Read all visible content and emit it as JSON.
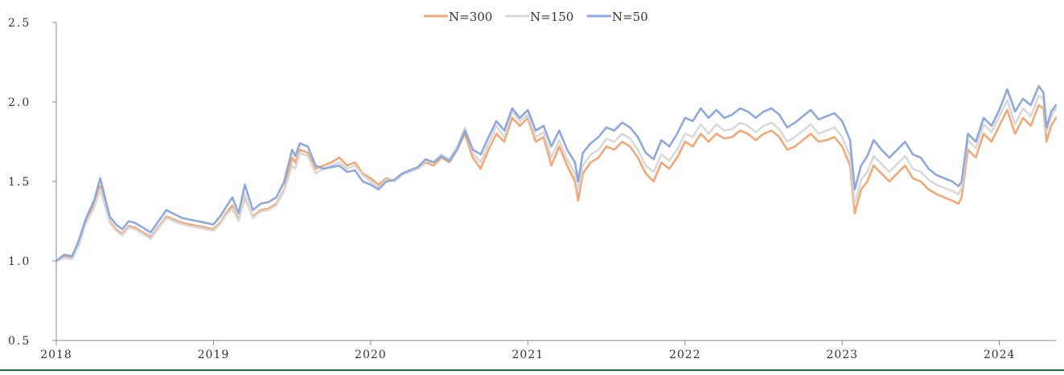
{
  "chart_data": {
    "type": "line",
    "title": "",
    "xlabel": "",
    "ylabel": "",
    "ylim": [
      0.5,
      2.5
    ],
    "xlim": [
      2018.0,
      2024.36
    ],
    "y_ticks": [
      "0.5",
      "1.0",
      "1.5",
      "2.0",
      "2.5"
    ],
    "y_tick_values": [
      0.5,
      1.0,
      1.5,
      2.0,
      2.5
    ],
    "x_ticks": [
      "2018",
      "2019",
      "2020",
      "2021",
      "2022",
      "2023",
      "2024"
    ],
    "x_tick_values": [
      2018,
      2019,
      2020,
      2021,
      2022,
      2023,
      2024
    ],
    "grid": false,
    "legend_position": "top-center",
    "series": [
      {
        "name": "N=300",
        "color": "#f0a878",
        "x": [
          2018.0,
          2018.05,
          2018.1,
          2018.14,
          2018.19,
          2018.24,
          2018.28,
          2018.3,
          2018.34,
          2018.38,
          2018.42,
          2018.46,
          2018.5,
          2018.55,
          2018.6,
          2018.7,
          2018.8,
          2018.9,
          2019.0,
          2019.05,
          2019.08,
          2019.12,
          2019.16,
          2019.2,
          2019.25,
          2019.3,
          2019.35,
          2019.4,
          2019.45,
          2019.5,
          2019.52,
          2019.55,
          2019.6,
          2019.65,
          2019.7,
          2019.75,
          2019.8,
          2019.85,
          2019.9,
          2019.95,
          2020.0,
          2020.05,
          2020.1,
          2020.15,
          2020.2,
          2020.25,
          2020.3,
          2020.35,
          2020.4,
          2020.45,
          2020.5,
          2020.55,
          2020.6,
          2020.65,
          2020.7,
          2020.75,
          2020.8,
          2020.85,
          2020.9,
          2020.95,
          2021.0,
          2021.05,
          2021.1,
          2021.15,
          2021.2,
          2021.25,
          2021.3,
          2021.32,
          2021.35,
          2021.4,
          2021.45,
          2021.5,
          2021.55,
          2021.6,
          2021.65,
          2021.7,
          2021.75,
          2021.8,
          2021.85,
          2021.9,
          2021.95,
          2022.0,
          2022.05,
          2022.1,
          2022.15,
          2022.2,
          2022.25,
          2022.3,
          2022.35,
          2022.4,
          2022.45,
          2022.5,
          2022.55,
          2022.6,
          2022.65,
          2022.7,
          2022.75,
          2022.8,
          2022.85,
          2022.9,
          2022.95,
          2023.0,
          2023.05,
          2023.08,
          2023.12,
          2023.16,
          2023.2,
          2023.25,
          2023.3,
          2023.35,
          2023.4,
          2023.45,
          2023.5,
          2023.55,
          2023.6,
          2023.65,
          2023.7,
          2023.74,
          2023.76,
          2023.8,
          2023.85,
          2023.9,
          2023.95,
          2024.0,
          2024.05,
          2024.1,
          2024.15,
          2024.2,
          2024.25,
          2024.28,
          2024.3,
          2024.33,
          2024.36
        ],
        "values": [
          1.0,
          1.03,
          1.02,
          1.1,
          1.25,
          1.35,
          1.47,
          1.4,
          1.25,
          1.2,
          1.17,
          1.22,
          1.21,
          1.18,
          1.15,
          1.28,
          1.24,
          1.22,
          1.2,
          1.25,
          1.3,
          1.35,
          1.26,
          1.4,
          1.28,
          1.32,
          1.33,
          1.36,
          1.45,
          1.65,
          1.62,
          1.7,
          1.68,
          1.58,
          1.6,
          1.62,
          1.65,
          1.6,
          1.62,
          1.55,
          1.52,
          1.48,
          1.52,
          1.5,
          1.55,
          1.57,
          1.58,
          1.62,
          1.6,
          1.65,
          1.62,
          1.7,
          1.8,
          1.65,
          1.58,
          1.7,
          1.8,
          1.75,
          1.9,
          1.85,
          1.9,
          1.75,
          1.78,
          1.6,
          1.72,
          1.6,
          1.5,
          1.38,
          1.55,
          1.62,
          1.65,
          1.72,
          1.7,
          1.75,
          1.72,
          1.65,
          1.55,
          1.5,
          1.62,
          1.58,
          1.65,
          1.75,
          1.72,
          1.8,
          1.75,
          1.8,
          1.77,
          1.78,
          1.82,
          1.8,
          1.76,
          1.8,
          1.82,
          1.78,
          1.7,
          1.72,
          1.76,
          1.8,
          1.75,
          1.76,
          1.78,
          1.72,
          1.6,
          1.3,
          1.45,
          1.5,
          1.6,
          1.55,
          1.5,
          1.55,
          1.6,
          1.52,
          1.5,
          1.45,
          1.42,
          1.4,
          1.38,
          1.36,
          1.4,
          1.7,
          1.65,
          1.8,
          1.75,
          1.85,
          1.95,
          1.8,
          1.9,
          1.85,
          1.98,
          1.96,
          1.75,
          1.85,
          1.9
        ]
      },
      {
        "name": "N=150",
        "color": "#d9d9d9",
        "x": [
          2018.0,
          2018.05,
          2018.1,
          2018.14,
          2018.19,
          2018.24,
          2018.28,
          2018.3,
          2018.34,
          2018.38,
          2018.42,
          2018.46,
          2018.5,
          2018.55,
          2018.6,
          2018.7,
          2018.8,
          2018.9,
          2019.0,
          2019.05,
          2019.08,
          2019.12,
          2019.16,
          2019.2,
          2019.25,
          2019.3,
          2019.35,
          2019.4,
          2019.45,
          2019.5,
          2019.52,
          2019.55,
          2019.6,
          2019.65,
          2019.7,
          2019.75,
          2019.8,
          2019.85,
          2019.9,
          2019.95,
          2020.0,
          2020.05,
          2020.1,
          2020.15,
          2020.2,
          2020.25,
          2020.3,
          2020.35,
          2020.4,
          2020.45,
          2020.5,
          2020.55,
          2020.6,
          2020.65,
          2020.7,
          2020.75,
          2020.8,
          2020.85,
          2020.9,
          2020.95,
          2021.0,
          2021.05,
          2021.1,
          2021.15,
          2021.2,
          2021.25,
          2021.3,
          2021.32,
          2021.35,
          2021.4,
          2021.45,
          2021.5,
          2021.55,
          2021.6,
          2021.65,
          2021.7,
          2021.75,
          2021.8,
          2021.85,
          2021.9,
          2021.95,
          2022.0,
          2022.05,
          2022.1,
          2022.15,
          2022.2,
          2022.25,
          2022.3,
          2022.35,
          2022.4,
          2022.45,
          2022.5,
          2022.55,
          2022.6,
          2022.65,
          2022.7,
          2022.75,
          2022.8,
          2022.85,
          2022.9,
          2022.95,
          2023.0,
          2023.05,
          2023.08,
          2023.12,
          2023.16,
          2023.2,
          2023.25,
          2023.3,
          2023.35,
          2023.4,
          2023.45,
          2023.5,
          2023.55,
          2023.6,
          2023.65,
          2023.7,
          2023.74,
          2023.76,
          2023.8,
          2023.85,
          2023.9,
          2023.95,
          2024.0,
          2024.05,
          2024.1,
          2024.15,
          2024.2,
          2024.25,
          2024.28,
          2024.3,
          2024.33,
          2024.36
        ],
        "values": [
          1.0,
          1.02,
          1.01,
          1.09,
          1.24,
          1.33,
          1.45,
          1.38,
          1.24,
          1.19,
          1.16,
          1.21,
          1.2,
          1.17,
          1.14,
          1.27,
          1.23,
          1.21,
          1.19,
          1.24,
          1.29,
          1.33,
          1.25,
          1.42,
          1.27,
          1.31,
          1.32,
          1.35,
          1.44,
          1.6,
          1.58,
          1.68,
          1.66,
          1.55,
          1.58,
          1.6,
          1.62,
          1.58,
          1.6,
          1.54,
          1.5,
          1.46,
          1.51,
          1.5,
          1.54,
          1.56,
          1.58,
          1.63,
          1.62,
          1.67,
          1.64,
          1.72,
          1.84,
          1.68,
          1.62,
          1.74,
          1.85,
          1.78,
          1.94,
          1.88,
          1.92,
          1.78,
          1.81,
          1.65,
          1.76,
          1.64,
          1.55,
          1.44,
          1.6,
          1.67,
          1.7,
          1.77,
          1.75,
          1.8,
          1.77,
          1.7,
          1.6,
          1.56,
          1.67,
          1.63,
          1.7,
          1.8,
          1.78,
          1.86,
          1.8,
          1.86,
          1.82,
          1.83,
          1.87,
          1.85,
          1.81,
          1.85,
          1.87,
          1.83,
          1.75,
          1.78,
          1.82,
          1.86,
          1.8,
          1.82,
          1.84,
          1.78,
          1.66,
          1.36,
          1.51,
          1.56,
          1.66,
          1.61,
          1.56,
          1.61,
          1.66,
          1.58,
          1.56,
          1.51,
          1.48,
          1.46,
          1.44,
          1.42,
          1.46,
          1.76,
          1.71,
          1.86,
          1.81,
          1.91,
          2.01,
          1.86,
          1.96,
          1.91,
          2.04,
          2.02,
          1.81,
          1.91,
          1.96
        ]
      },
      {
        "name": "N=50",
        "color": "#8fa8dc",
        "x": [
          2018.0,
          2018.05,
          2018.1,
          2018.14,
          2018.19,
          2018.24,
          2018.28,
          2018.3,
          2018.34,
          2018.38,
          2018.42,
          2018.46,
          2018.5,
          2018.55,
          2018.6,
          2018.7,
          2018.8,
          2018.9,
          2019.0,
          2019.05,
          2019.08,
          2019.12,
          2019.16,
          2019.2,
          2019.25,
          2019.3,
          2019.35,
          2019.4,
          2019.45,
          2019.5,
          2019.52,
          2019.55,
          2019.6,
          2019.65,
          2019.7,
          2019.75,
          2019.8,
          2019.85,
          2019.9,
          2019.95,
          2020.0,
          2020.05,
          2020.1,
          2020.15,
          2020.2,
          2020.25,
          2020.3,
          2020.35,
          2020.4,
          2020.45,
          2020.5,
          2020.55,
          2020.6,
          2020.65,
          2020.7,
          2020.75,
          2020.8,
          2020.85,
          2020.9,
          2020.95,
          2021.0,
          2021.05,
          2021.1,
          2021.15,
          2021.2,
          2021.25,
          2021.3,
          2021.32,
          2021.35,
          2021.4,
          2021.45,
          2021.5,
          2021.55,
          2021.6,
          2021.65,
          2021.7,
          2021.75,
          2021.8,
          2021.85,
          2021.9,
          2021.95,
          2022.0,
          2022.05,
          2022.1,
          2022.15,
          2022.2,
          2022.25,
          2022.3,
          2022.35,
          2022.4,
          2022.45,
          2022.5,
          2022.55,
          2022.6,
          2022.65,
          2022.7,
          2022.75,
          2022.8,
          2022.85,
          2022.9,
          2022.95,
          2023.0,
          2023.05,
          2023.08,
          2023.12,
          2023.16,
          2023.2,
          2023.25,
          2023.3,
          2023.35,
          2023.4,
          2023.45,
          2023.5,
          2023.55,
          2023.6,
          2023.65,
          2023.7,
          2023.74,
          2023.76,
          2023.8,
          2023.85,
          2023.9,
          2023.95,
          2024.0,
          2024.05,
          2024.1,
          2024.15,
          2024.2,
          2024.25,
          2024.28,
          2024.3,
          2024.33,
          2024.36
        ],
        "values": [
          1.0,
          1.04,
          1.03,
          1.12,
          1.27,
          1.38,
          1.52,
          1.44,
          1.28,
          1.23,
          1.2,
          1.25,
          1.24,
          1.21,
          1.18,
          1.32,
          1.27,
          1.25,
          1.23,
          1.29,
          1.34,
          1.4,
          1.3,
          1.48,
          1.32,
          1.36,
          1.37,
          1.4,
          1.5,
          1.7,
          1.66,
          1.74,
          1.72,
          1.6,
          1.58,
          1.59,
          1.6,
          1.56,
          1.57,
          1.5,
          1.48,
          1.45,
          1.5,
          1.51,
          1.55,
          1.57,
          1.59,
          1.64,
          1.62,
          1.66,
          1.63,
          1.7,
          1.82,
          1.7,
          1.67,
          1.78,
          1.88,
          1.82,
          1.96,
          1.9,
          1.95,
          1.82,
          1.85,
          1.72,
          1.82,
          1.7,
          1.62,
          1.5,
          1.68,
          1.74,
          1.78,
          1.84,
          1.82,
          1.87,
          1.84,
          1.78,
          1.68,
          1.64,
          1.76,
          1.72,
          1.8,
          1.9,
          1.88,
          1.96,
          1.9,
          1.95,
          1.9,
          1.92,
          1.96,
          1.94,
          1.9,
          1.94,
          1.96,
          1.92,
          1.84,
          1.87,
          1.91,
          1.95,
          1.89,
          1.91,
          1.93,
          1.88,
          1.76,
          1.45,
          1.6,
          1.66,
          1.76,
          1.7,
          1.65,
          1.7,
          1.75,
          1.67,
          1.65,
          1.58,
          1.54,
          1.52,
          1.5,
          1.47,
          1.5,
          1.8,
          1.75,
          1.9,
          1.85,
          1.95,
          2.08,
          1.94,
          2.02,
          1.98,
          2.1,
          2.06,
          1.84,
          1.94,
          1.98
        ]
      }
    ]
  }
}
